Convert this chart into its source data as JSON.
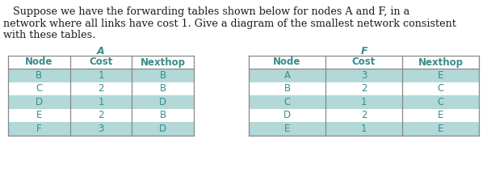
{
  "title_text_line1": "   Suppose we have the forwarding tables shown below for nodes A and F, in a",
  "title_text_line2": "network where all links have cost 1. Give a diagram of the smallest network consistent",
  "title_text_line3": "with these tables.",
  "table_a_title": "A",
  "table_f_title": "F",
  "table_headers": [
    "Node",
    "Cost",
    "Nexthop"
  ],
  "table_a_rows": [
    [
      "B",
      "1",
      "B"
    ],
    [
      "C",
      "2",
      "B"
    ],
    [
      "D",
      "1",
      "D"
    ],
    [
      "E",
      "2",
      "B"
    ],
    [
      "F",
      "3",
      "D"
    ]
  ],
  "table_f_rows": [
    [
      "A",
      "3",
      "E"
    ],
    [
      "B",
      "2",
      "C"
    ],
    [
      "C",
      "1",
      "C"
    ],
    [
      "D",
      "2",
      "E"
    ],
    [
      "E",
      "1",
      "E"
    ]
  ],
  "row_alt_color": "#b2d8d8",
  "row_plain_color": "#ffffff",
  "text_color": "#3a8c8c",
  "header_text_color": "#3a8c8c",
  "title_fontsize": 9.2,
  "table_fontsize": 8.5,
  "title_fontsize_header": 9.0,
  "title_color": "#1a1a1a",
  "background_color": "#ffffff",
  "line_color": "#888888"
}
